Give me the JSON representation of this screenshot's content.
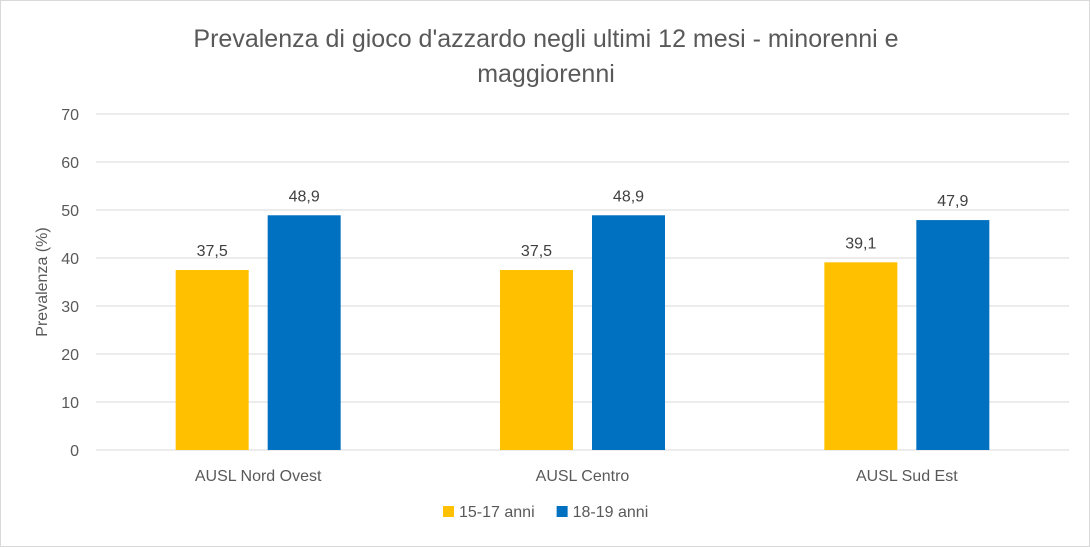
{
  "chart_data": {
    "type": "bar",
    "title_lines": [
      "Prevalenza di gioco d'azzardo negli ultimi 12 mesi - minorenni e",
      "maggiorenni"
    ],
    "xlabel": "",
    "ylabel": "Prevalenza (%)",
    "ylim": [
      0,
      70
    ],
    "yticks": [
      0,
      10,
      20,
      30,
      40,
      50,
      60,
      70
    ],
    "grid": true,
    "legend_position": "bottom",
    "categories": [
      "AUSL Nord Ovest",
      "AUSL Centro",
      "AUSL Sud Est"
    ],
    "series": [
      {
        "name": "15-17 anni",
        "color": "#ffc000",
        "values": [
          37.5,
          37.5,
          39.1
        ],
        "labels": [
          "37,5",
          "37,5",
          "39,1"
        ]
      },
      {
        "name": "18-19 anni",
        "color": "#0070c0",
        "values": [
          48.9,
          48.9,
          47.9
        ],
        "labels": [
          "48,9",
          "48,9",
          "47,9"
        ]
      }
    ]
  }
}
